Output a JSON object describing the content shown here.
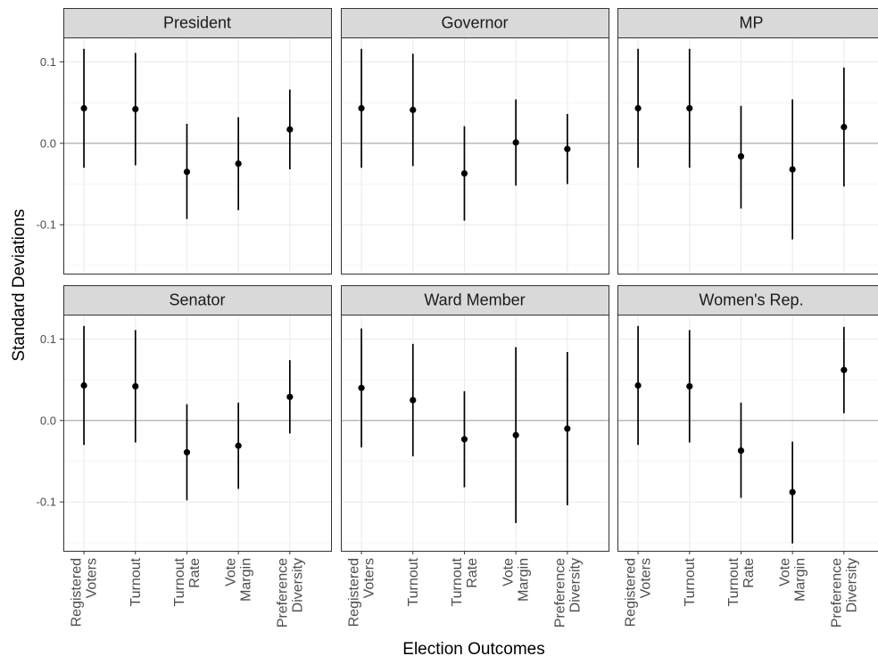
{
  "chart_data": {
    "type": "scatter",
    "style": "faceted point-range (estimate with interval)",
    "xlabel": "Election Outcomes",
    "ylabel": "Standard Deviations",
    "ylim": [
      -0.16,
      0.13
    ],
    "y_ticks": [
      0.1,
      0.0,
      -0.1
    ],
    "y_tick_labels": [
      "0.1",
      "0.0",
      "-0.1"
    ],
    "zero_line": true,
    "grid": true,
    "categories": [
      [
        "Registered",
        "Voters"
      ],
      [
        "Turnout"
      ],
      [
        "Turnout",
        "Rate"
      ],
      [
        "Vote",
        "Margin"
      ],
      [
        "Preference",
        "Diversity"
      ]
    ],
    "panels": [
      {
        "title": "President",
        "estimates": [
          0.043,
          0.042,
          -0.035,
          -0.025,
          0.017
        ],
        "lower": [
          -0.03,
          -0.027,
          -0.093,
          -0.082,
          -0.032
        ],
        "upper": [
          0.116,
          0.111,
          0.024,
          0.032,
          0.066
        ]
      },
      {
        "title": "Governor",
        "estimates": [
          0.043,
          0.041,
          -0.037,
          0.001,
          -0.007
        ],
        "lower": [
          -0.03,
          -0.028,
          -0.095,
          -0.052,
          -0.05
        ],
        "upper": [
          0.116,
          0.11,
          0.021,
          0.054,
          0.036
        ]
      },
      {
        "title": "MP",
        "estimates": [
          0.043,
          0.043,
          -0.016,
          -0.032,
          0.02
        ],
        "lower": [
          -0.03,
          -0.03,
          -0.08,
          -0.118,
          -0.053
        ],
        "upper": [
          0.116,
          0.116,
          0.046,
          0.054,
          0.093
        ]
      },
      {
        "title": "Senator",
        "estimates": [
          0.043,
          0.042,
          -0.039,
          -0.031,
          0.029
        ],
        "lower": [
          -0.03,
          -0.027,
          -0.098,
          -0.084,
          -0.016
        ],
        "upper": [
          0.116,
          0.111,
          0.02,
          0.022,
          0.074
        ]
      },
      {
        "title": "Ward Member",
        "estimates": [
          0.04,
          0.025,
          -0.023,
          -0.018,
          -0.01
        ],
        "lower": [
          -0.033,
          -0.044,
          -0.082,
          -0.126,
          -0.104
        ],
        "upper": [
          0.113,
          0.094,
          0.036,
          0.09,
          0.084
        ]
      },
      {
        "title": "Women's Rep.",
        "estimates": [
          0.043,
          0.042,
          -0.037,
          -0.088,
          0.062
        ],
        "lower": [
          -0.03,
          -0.027,
          -0.095,
          -0.151,
          0.009
        ],
        "upper": [
          0.116,
          0.111,
          0.022,
          -0.026,
          0.115
        ]
      }
    ]
  }
}
